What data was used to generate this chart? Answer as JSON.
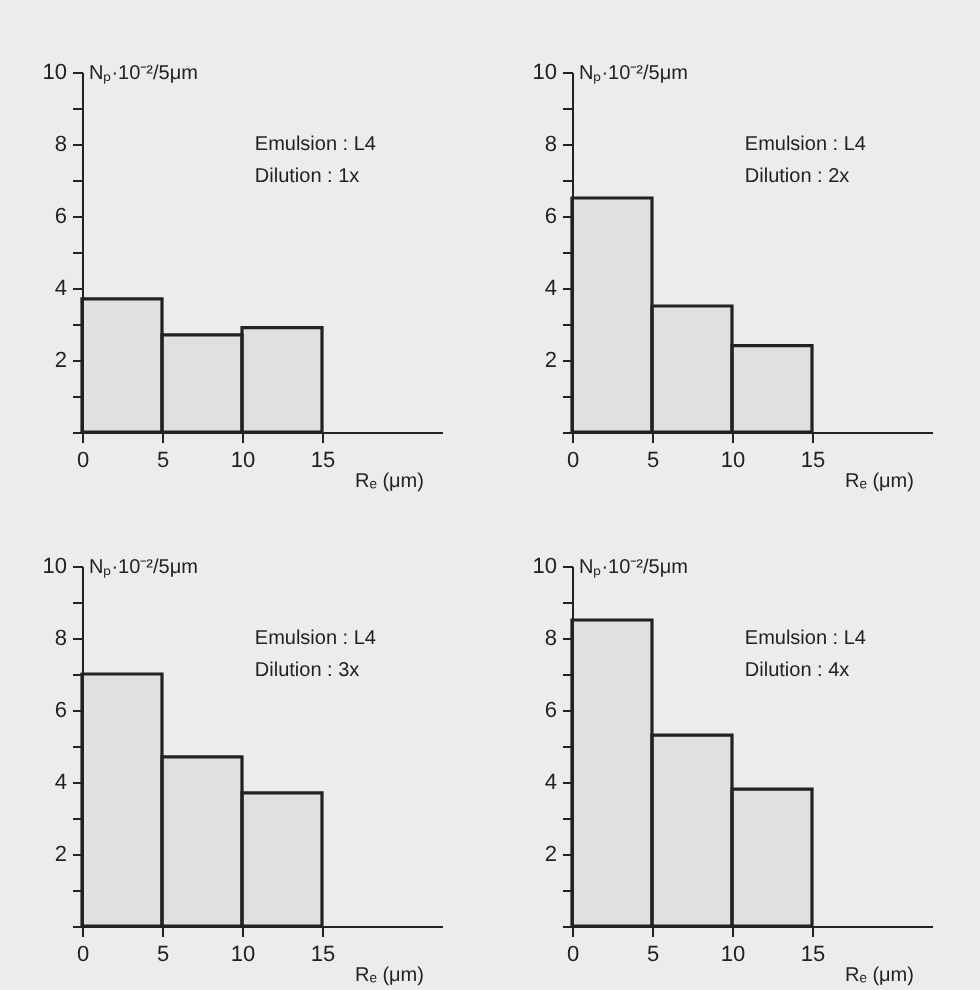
{
  "chart_data": [
    {
      "type": "histogram",
      "bins": [
        0,
        5,
        10,
        15
      ],
      "values": [
        3.7,
        2.7,
        2.9
      ],
      "color": "#222222",
      "xlim": [
        0,
        22.5
      ],
      "ylim": [
        0,
        10
      ],
      "xticks": [
        0,
        5,
        10,
        15
      ],
      "yticks": [
        {
          "value": 0,
          "label": null
        },
        {
          "value": 1,
          "label": null
        },
        2,
        {
          "value": 3,
          "label": null
        },
        4,
        {
          "value": 5,
          "label": null
        },
        6,
        {
          "value": 7,
          "label": null
        },
        8,
        {
          "value": 9,
          "label": null
        },
        10
      ],
      "xlabel": "Rₑ (μm)",
      "ylabel": "Nₚ·10⁻²/5μm",
      "annotations": [
        "Emulsion : L4",
        "Dilution : 1x"
      ]
    },
    {
      "type": "histogram",
      "bins": [
        0,
        5,
        10,
        15
      ],
      "values": [
        6.5,
        3.5,
        2.4
      ],
      "color": "#222222",
      "xlim": [
        0,
        22.5
      ],
      "ylim": [
        0,
        10
      ],
      "xticks": [
        0,
        5,
        10,
        15
      ],
      "yticks": [
        {
          "value": 0,
          "label": null
        },
        {
          "value": 1,
          "label": null
        },
        2,
        {
          "value": 3,
          "label": null
        },
        4,
        {
          "value": 5,
          "label": null
        },
        6,
        {
          "value": 7,
          "label": null
        },
        8,
        {
          "value": 9,
          "label": null
        },
        10
      ],
      "xlabel": "Rₑ (μm)",
      "ylabel": "Nₚ·10⁻²/5μm",
      "annotations": [
        "Emulsion : L4",
        "Dilution : 2x"
      ]
    },
    {
      "type": "histogram",
      "bins": [
        0,
        5,
        10,
        15
      ],
      "values": [
        7.0,
        4.7,
        3.7
      ],
      "color": "#222222",
      "xlim": [
        0,
        22.5
      ],
      "ylim": [
        0,
        10
      ],
      "xticks": [
        0,
        5,
        10,
        15
      ],
      "yticks": [
        {
          "value": 0,
          "label": null
        },
        {
          "value": 1,
          "label": null
        },
        2,
        {
          "value": 3,
          "label": null
        },
        4,
        {
          "value": 5,
          "label": null
        },
        6,
        {
          "value": 7,
          "label": null
        },
        8,
        {
          "value": 9,
          "label": null
        },
        10
      ],
      "xlabel": "Rₑ (μm)",
      "ylabel": "Nₚ·10⁻²/5μm",
      "annotations": [
        "Emulsion : L4",
        "Dilution : 3x"
      ]
    },
    {
      "type": "histogram",
      "bins": [
        0,
        5,
        10,
        15
      ],
      "values": [
        8.5,
        5.3,
        3.8
      ],
      "color": "#222222",
      "xlim": [
        0,
        22.5
      ],
      "ylim": [
        0,
        10
      ],
      "xticks": [
        0,
        5,
        10,
        15
      ],
      "yticks": [
        {
          "value": 0,
          "label": null
        },
        {
          "value": 1,
          "label": null
        },
        2,
        {
          "value": 3,
          "label": null
        },
        4,
        {
          "value": 5,
          "label": null
        },
        6,
        {
          "value": 7,
          "label": null
        },
        8,
        {
          "value": 9,
          "label": null
        },
        10
      ],
      "xlabel": "Rₑ (μm)",
      "ylabel": "Nₚ·10⁻²/5μm",
      "annotations": [
        "Emulsion : L4",
        "Dilution : 4x"
      ]
    }
  ]
}
